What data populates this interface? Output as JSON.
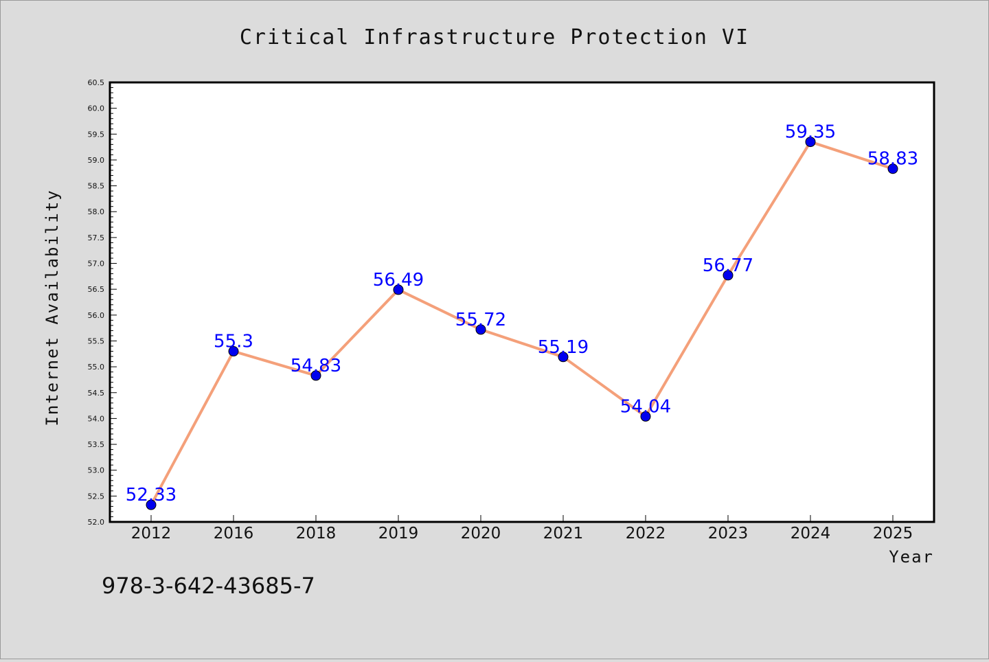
{
  "chart_data": {
    "type": "line",
    "title": "Critical Infrastructure Protection VI",
    "xlabel": "Year",
    "ylabel": "Internet Availability",
    "categories": [
      "2012",
      "2016",
      "2018",
      "2019",
      "2020",
      "2021",
      "2022",
      "2023",
      "2024",
      "2025"
    ],
    "series": [
      {
        "values": [
          52.33,
          55.3,
          54.83,
          56.49,
          55.72,
          55.19,
          54.04,
          56.77,
          59.35,
          58.83
        ],
        "data_labels": [
          "52.33",
          "55.3",
          "54.83",
          "56.49",
          "55.72",
          "55.19",
          "54.04",
          "56.77",
          "59.35",
          "58.83"
        ],
        "line_color": "#f4a07a",
        "marker_color": "#0000ee"
      }
    ],
    "ylim": [
      52.0,
      60.5
    ],
    "yticks": [
      "52.0",
      "52.5",
      "53.0",
      "53.5",
      "54.0",
      "54.5",
      "55.0",
      "55.5",
      "56.0",
      "56.5",
      "57.0",
      "57.5",
      "58.0",
      "58.5",
      "59.0",
      "59.5",
      "60.0",
      "60.5"
    ],
    "grid": false,
    "legend": "none",
    "label_color": "#0000ff",
    "background_color": "#dcdcdc",
    "plot_background_color": "#ffffff"
  },
  "footer": {
    "isbn": "978-3-642-43685-7"
  }
}
